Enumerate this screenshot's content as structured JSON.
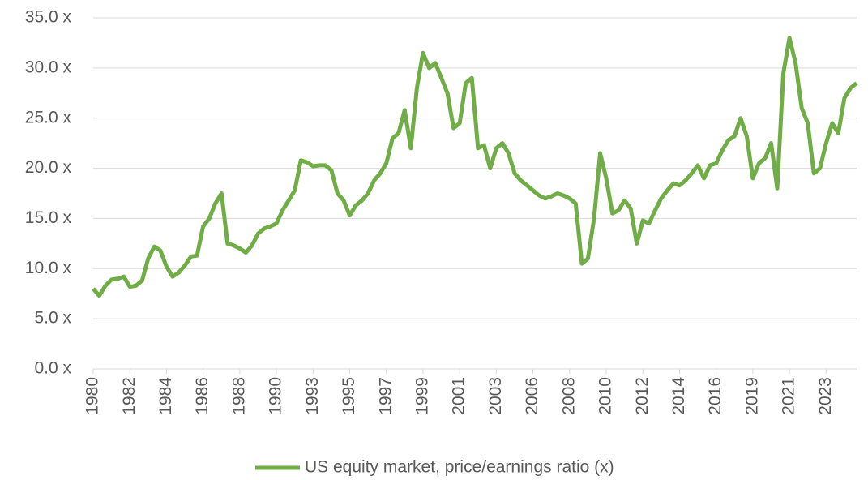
{
  "chart_data": {
    "type": "line",
    "categories": [
      "1980",
      null,
      null,
      null,
      null,
      null,
      "1982",
      null,
      null,
      null,
      null,
      null,
      "1984",
      null,
      null,
      null,
      null,
      null,
      "1986",
      null,
      null,
      null,
      null,
      null,
      "1988",
      null,
      null,
      null,
      null,
      null,
      "1990",
      null,
      null,
      null,
      null,
      null,
      "1993",
      null,
      null,
      null,
      null,
      null,
      "1995",
      null,
      null,
      null,
      null,
      null,
      "1997",
      null,
      null,
      null,
      null,
      null,
      "1999",
      null,
      null,
      null,
      null,
      null,
      "2001",
      null,
      null,
      null,
      null,
      null,
      "2003",
      null,
      null,
      null,
      null,
      null,
      "2006",
      null,
      null,
      null,
      null,
      null,
      "2008",
      null,
      null,
      null,
      null,
      null,
      "2010",
      null,
      null,
      null,
      null,
      null,
      "2012",
      null,
      null,
      null,
      null,
      null,
      "2014",
      null,
      null,
      null,
      null,
      null,
      "2016",
      null,
      null,
      null,
      null,
      null,
      "2019",
      null,
      null,
      null,
      null,
      null,
      "2021",
      null,
      null,
      null,
      null,
      null,
      "2023",
      null,
      null,
      null,
      null,
      null
    ],
    "series": [
      {
        "name": "US equity market, price/earnings ratio (x)",
        "color": "#70ad47",
        "values": [
          8.0,
          7.3,
          8.3,
          8.9,
          9.0,
          9.2,
          8.2,
          8.3,
          8.8,
          11.0,
          12.2,
          11.8,
          10.2,
          9.2,
          9.6,
          10.3,
          11.2,
          11.3,
          14.2,
          15.0,
          16.5,
          17.5,
          12.5,
          12.3,
          12.0,
          11.6,
          12.3,
          13.5,
          14.0,
          14.2,
          14.5,
          15.8,
          16.8,
          17.8,
          20.8,
          20.6,
          20.2,
          20.3,
          20.3,
          19.8,
          17.5,
          16.8,
          15.3,
          16.3,
          16.8,
          17.5,
          18.8,
          19.5,
          20.5,
          23.0,
          23.5,
          25.8,
          22.0,
          28.0,
          31.5,
          30.0,
          30.5,
          29.0,
          27.5,
          24.0,
          24.5,
          28.5,
          29.0,
          22.0,
          22.3,
          20.0,
          22.0,
          22.5,
          21.5,
          19.5,
          18.8,
          18.3,
          17.8,
          17.3,
          17.0,
          17.2,
          17.5,
          17.3,
          17.0,
          16.5,
          10.5,
          11.0,
          15.0,
          21.5,
          19.0,
          15.5,
          15.8,
          16.8,
          16.0,
          12.5,
          14.8,
          14.5,
          15.8,
          17.0,
          17.8,
          18.5,
          18.3,
          18.8,
          19.5,
          20.3,
          19.0,
          20.3,
          20.5,
          21.8,
          22.8,
          23.2,
          25.0,
          23.2,
          19.0,
          20.5,
          21.0,
          22.5,
          18.0,
          29.5,
          33.0,
          30.5,
          26.0,
          24.5,
          19.5,
          20.0,
          22.5,
          24.5,
          23.5,
          27.0,
          28.0,
          28.5
        ]
      }
    ],
    "ylim": [
      0,
      35
    ],
    "yticks": [
      {
        "value": 0,
        "label": "0.0 x"
      },
      {
        "value": 5,
        "label": "5.0 x"
      },
      {
        "value": 10,
        "label": "10.0 x"
      },
      {
        "value": 15,
        "label": "15.0 x"
      },
      {
        "value": 20,
        "label": "20.0 x"
      },
      {
        "value": 25,
        "label": "25.0 x"
      },
      {
        "value": 30,
        "label": "30.0 x"
      },
      {
        "value": 35,
        "label": "35.0 x"
      }
    ],
    "grid": true,
    "legend": "bottom"
  }
}
